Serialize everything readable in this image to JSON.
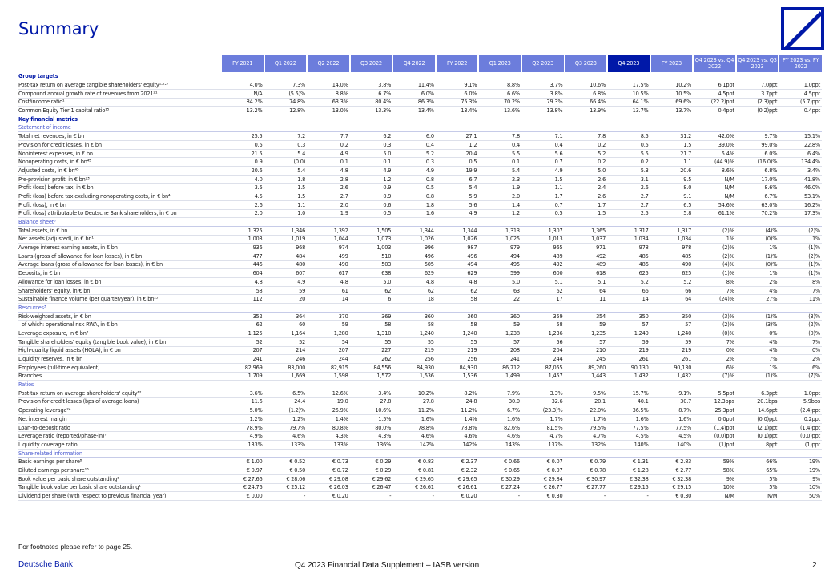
{
  "page": {
    "title": "Summary",
    "footnote": "For footnotes please refer to page 25.",
    "brand": "Deutsche Bank",
    "document_title": "Q4 2023 Financial Data Supplement – IASB version",
    "page_number": "2",
    "accent_color": "#0018a8"
  },
  "columns": [
    "FY 2021",
    "Q1 2022",
    "Q2 2022",
    "Q3 2022",
    "Q4 2022",
    "FY 2022",
    "Q1 2023",
    "Q2 2023",
    "Q3 2023",
    "Q4 2023",
    "FY 2023",
    "Q4 2023 vs. Q4 2022",
    "Q4 2023 vs. Q3 2023",
    "FY 2023 vs. FY 2022"
  ],
  "rows": [
    {
      "type": "section",
      "label": "Group targets"
    },
    {
      "label": "Post-tax return on average tangible shareholders' equity¹·²·³",
      "values": [
        "4.0%",
        "7.3%",
        "14.0%",
        "3.8%",
        "11.4%",
        "9.1%",
        "8.8%",
        "3.7%",
        "10.6%",
        "17.5%",
        "10.2%",
        "6.1ppt",
        "7.0ppt",
        "1.0ppt"
      ]
    },
    {
      "label": "Compound annual growth rate of revenues from 2021²¹",
      "values": [
        "N/A",
        "(5.5)%",
        "8.8%",
        "6.7%",
        "6.0%",
        "6.0%",
        "6.6%",
        "3.8%",
        "6.8%",
        "10.5%",
        "10.5%",
        "4.5ppt",
        "3.7ppt",
        "4.5ppt"
      ]
    },
    {
      "label": "Cost/income ratio¹",
      "values": [
        "84.2%",
        "74.8%",
        "63.3%",
        "80.4%",
        "86.3%",
        "75.3%",
        "70.2%",
        "79.3%",
        "66.4%",
        "64.1%",
        "69.6%",
        "(22.2)ppt",
        "(2.3)ppt",
        "(5.7)ppt"
      ]
    },
    {
      "label": "Common Equity Tier 1 capital ratio¹⁵",
      "values": [
        "13.2%",
        "12.8%",
        "13.0%",
        "13.3%",
        "13.4%",
        "13.4%",
        "13.6%",
        "13.8%",
        "13.9%",
        "13.7%",
        "13.7%",
        "0.4ppt",
        "(0.2)ppt",
        "0.4ppt"
      ]
    },
    {
      "type": "section",
      "label": "Key financial metrics"
    },
    {
      "type": "subsection",
      "label": "Statement of income"
    },
    {
      "label": "Total net revenues, in € bn",
      "values": [
        "25.5",
        "7.2",
        "7.7",
        "6.2",
        "6.0",
        "27.1",
        "7.8",
        "7.1",
        "7.8",
        "8.5",
        "31.2",
        "42.0%",
        "9.7%",
        "15.1%"
      ]
    },
    {
      "label": "Provision for credit losses, in € bn",
      "values": [
        "0.5",
        "0.3",
        "0.2",
        "0.3",
        "0.4",
        "1.2",
        "0.4",
        "0.4",
        "0.2",
        "0.5",
        "1.5",
        "39.0%",
        "99.0%",
        "22.8%"
      ]
    },
    {
      "label": "Noninterest expenses, in € bn",
      "values": [
        "21.5",
        "5.4",
        "4.9",
        "5.0",
        "5.2",
        "20.4",
        "5.5",
        "5.6",
        "5.2",
        "5.5",
        "21.7",
        "5.4%",
        "6.0%",
        "6.4%"
      ]
    },
    {
      "label": "Nonoperating costs, in € bn⁴⁵",
      "values": [
        "0.9",
        "(0.0)",
        "0.1",
        "0.1",
        "0.3",
        "0.5",
        "0.1",
        "0.7",
        "0.2",
        "0.2",
        "1.1",
        "(44.9)%",
        "(16.0)%",
        "134.4%"
      ]
    },
    {
      "label": "Adjusted costs, in € bn⁴⁵",
      "values": [
        "20.6",
        "5.4",
        "4.8",
        "4.9",
        "4.9",
        "19.9",
        "5.4",
        "4.9",
        "5.0",
        "5.3",
        "20.6",
        "8.6%",
        "6.8%",
        "3.4%"
      ]
    },
    {
      "label": "Pre-provision profit, in € bn²³",
      "values": [
        "4.0",
        "1.8",
        "2.8",
        "1.2",
        "0.8",
        "6.7",
        "2.3",
        "1.5",
        "2.6",
        "3.1",
        "9.5",
        "N/M",
        "17.0%",
        "41.8%"
      ]
    },
    {
      "label": "Profit (loss) before tax, in € bn",
      "values": [
        "3.5",
        "1.5",
        "2.6",
        "0.9",
        "0.5",
        "5.4",
        "1.9",
        "1.1",
        "2.4",
        "2.6",
        "8.0",
        "N/M",
        "8.6%",
        "46.0%"
      ]
    },
    {
      "label": "Profit (loss) before tax excluding nonoperating costs, in € bn⁴",
      "values": [
        "4.5",
        "1.5",
        "2.7",
        "0.9",
        "0.8",
        "5.9",
        "2.0",
        "1.7",
        "2.6",
        "2.7",
        "9.1",
        "N/M",
        "6.7%",
        "53.1%"
      ]
    },
    {
      "label": "Profit (loss), in € bn",
      "values": [
        "2.6",
        "1.1",
        "2.0",
        "0.6",
        "1.8",
        "5.6",
        "1.4",
        "0.7",
        "1.7",
        "2.7",
        "6.5",
        "54.6%",
        "63.0%",
        "16.2%"
      ]
    },
    {
      "label": "Profit (loss) attributable to Deutsche Bank shareholders, in € bn",
      "values": [
        "2.0",
        "1.0",
        "1.9",
        "0.5",
        "1.6",
        "4.9",
        "1.2",
        "0.5",
        "1.5",
        "2.5",
        "5.8",
        "61.1%",
        "70.2%",
        "17.3%"
      ]
    },
    {
      "type": "subsection",
      "label": "Balance sheet³"
    },
    {
      "label": "Total assets, in € bn",
      "values": [
        "1,325",
        "1,346",
        "1,392",
        "1,505",
        "1,344",
        "1,344",
        "1,313",
        "1,307",
        "1,365",
        "1,317",
        "1,317",
        "(2)%",
        "(4)%",
        "(2)%"
      ]
    },
    {
      "label": "Net assets (adjusted), in € bn¹",
      "values": [
        "1,003",
        "1,019",
        "1,044",
        "1,073",
        "1,026",
        "1,026",
        "1,025",
        "1,013",
        "1,037",
        "1,034",
        "1,034",
        "1%",
        "(0)%",
        "1%"
      ]
    },
    {
      "label": "Average interest earning assets, in € bn",
      "values": [
        "936",
        "968",
        "974",
        "1,003",
        "996",
        "987",
        "979",
        "965",
        "971",
        "978",
        "978",
        "(2)%",
        "1%",
        "(1)%"
      ]
    },
    {
      "label": "Loans (gross of allowance for loan losses), in € bn",
      "values": [
        "477",
        "484",
        "499",
        "510",
        "496",
        "496",
        "494",
        "489",
        "492",
        "485",
        "485",
        "(2)%",
        "(1)%",
        "(2)%"
      ]
    },
    {
      "label": "Average loans (gross of allowance for loan losses), in € bn",
      "values": [
        "446",
        "480",
        "490",
        "503",
        "505",
        "494",
        "495",
        "492",
        "489",
        "486",
        "490",
        "(4)%",
        "(0)%",
        "(1)%"
      ]
    },
    {
      "label": "Deposits, in € bn",
      "values": [
        "604",
        "607",
        "617",
        "638",
        "629",
        "629",
        "599",
        "600",
        "618",
        "625",
        "625",
        "(1)%",
        "1%",
        "(1)%"
      ]
    },
    {
      "label": "Allowance for loan losses, in € bn",
      "values": [
        "4.8",
        "4.9",
        "4.8",
        "5.0",
        "4.8",
        "4.8",
        "5.0",
        "5.1",
        "5.1",
        "5.2",
        "5.2",
        "8%",
        "2%",
        "8%"
      ]
    },
    {
      "label": "Shareholders' equity, in € bn",
      "values": [
        "58",
        "59",
        "61",
        "62",
        "62",
        "62",
        "63",
        "62",
        "64",
        "66",
        "66",
        "7%",
        "4%",
        "7%"
      ]
    },
    {
      "label": "Sustainable finance volume (per quarter/year), in € bn²³",
      "values": [
        "112",
        "20",
        "14",
        "6",
        "18",
        "58",
        "22",
        "17",
        "11",
        "14",
        "64",
        "(24)%",
        "27%",
        "11%"
      ]
    },
    {
      "type": "subsection",
      "label": "Resources³"
    },
    {
      "label": "Risk-weighted assets, in € bn",
      "values": [
        "352",
        "364",
        "370",
        "369",
        "360",
        "360",
        "360",
        "359",
        "354",
        "350",
        "350",
        "(3)%",
        "(1)%",
        "(3)%"
      ]
    },
    {
      "label": "of which: operational risk RWA, in € bn",
      "indent": true,
      "values": [
        "62",
        "60",
        "59",
        "58",
        "58",
        "58",
        "59",
        "58",
        "59",
        "57",
        "57",
        "(2)%",
        "(3)%",
        "(2)%"
      ]
    },
    {
      "label": "Leverage exposure, in € bn⁷",
      "values": [
        "1,125",
        "1,164",
        "1,280",
        "1,310",
        "1,240",
        "1,240",
        "1,238",
        "1,236",
        "1,235",
        "1,240",
        "1,240",
        "(0)%",
        "0%",
        "(0)%"
      ]
    },
    {
      "label": "Tangible shareholders' equity (tangible book value), in € bn",
      "values": [
        "52",
        "52",
        "54",
        "55",
        "55",
        "55",
        "57",
        "56",
        "57",
        "59",
        "59",
        "7%",
        "4%",
        "7%"
      ]
    },
    {
      "label": "High-quality liquid assets (HQLA), in € bn",
      "values": [
        "207",
        "214",
        "207",
        "227",
        "219",
        "219",
        "208",
        "204",
        "210",
        "219",
        "219",
        "0%",
        "4%",
        "0%"
      ]
    },
    {
      "label": "Liquidity reserves, in € bn",
      "values": [
        "241",
        "246",
        "244",
        "262",
        "256",
        "256",
        "241",
        "244",
        "245",
        "261",
        "261",
        "2%",
        "7%",
        "2%"
      ]
    },
    {
      "label": "Employees (full-time equivalent)",
      "values": [
        "82,969",
        "83,000",
        "82,915",
        "84,556",
        "84,930",
        "84,930",
        "86,712",
        "87,055",
        "89,260",
        "90,130",
        "90,130",
        "6%",
        "1%",
        "6%"
      ]
    },
    {
      "label": "Branches",
      "values": [
        "1,709",
        "1,669",
        "1,598",
        "1,572",
        "1,536",
        "1,536",
        "1,499",
        "1,457",
        "1,443",
        "1,432",
        "1,432",
        "(7)%",
        "(1)%",
        "(7)%"
      ]
    },
    {
      "type": "subsection",
      "label": "Ratios"
    },
    {
      "label": "Post-tax return on average shareholders' equity¹²",
      "values": [
        "3.6%",
        "6.5%",
        "12.6%",
        "3.4%",
        "10.2%",
        "8.2%",
        "7.9%",
        "3.3%",
        "9.5%",
        "15.7%",
        "9.1%",
        "5.5ppt",
        "6.3ppt",
        "1.0ppt"
      ]
    },
    {
      "label": "Provision for credit losses (bps of average loans)",
      "values": [
        "11.6",
        "24.4",
        "19.0",
        "27.8",
        "27.8",
        "24.8",
        "30.0",
        "32.6",
        "20.1",
        "40.1",
        "30.7",
        "12.3bps",
        "20.1bps",
        "5.9bps"
      ]
    },
    {
      "label": "Operating leverage²⁴",
      "values": [
        "5.0%",
        "(1.2)%",
        "25.9%",
        "10.6%",
        "11.2%",
        "11.2%",
        "6.7%",
        "(23.3)%",
        "22.0%",
        "36.5%",
        "8.7%",
        "25.3ppt",
        "14.6ppt",
        "(2.4)ppt"
      ]
    },
    {
      "label": "Net interest margin",
      "values": [
        "1.2%",
        "1.2%",
        "1.4%",
        "1.5%",
        "1.6%",
        "1.4%",
        "1.6%",
        "1.7%",
        "1.7%",
        "1.6%",
        "1.6%",
        "0.0ppt",
        "(0.0)ppt",
        "0.2ppt"
      ]
    },
    {
      "label": "Loan-to-deposit ratio",
      "values": [
        "78.9%",
        "79.7%",
        "80.8%",
        "80.0%",
        "78.8%",
        "78.8%",
        "82.6%",
        "81.5%",
        "79.5%",
        "77.5%",
        "77.5%",
        "(1.4)ppt",
        "(2.1)ppt",
        "(1.4)ppt"
      ]
    },
    {
      "label": "Leverage ratio (reported/phase-in)⁷",
      "values": [
        "4.9%",
        "4.6%",
        "4.3%",
        "4.3%",
        "4.6%",
        "4.6%",
        "4.6%",
        "4.7%",
        "4.7%",
        "4.5%",
        "4.5%",
        "(0.0)ppt",
        "(0.1)ppt",
        "(0.0)ppt"
      ]
    },
    {
      "label": "Liquidity coverage ratio",
      "values": [
        "133%",
        "133%",
        "133%",
        "136%",
        "142%",
        "142%",
        "143%",
        "137%",
        "132%",
        "140%",
        "140%",
        "(1)ppt",
        "8ppt",
        "(1)ppt"
      ]
    },
    {
      "type": "subsection",
      "label": "Share-related information"
    },
    {
      "label": "Basic earnings per share⁸",
      "values": [
        "€ 1.00",
        "€ 0.52",
        "€ 0.73",
        "€ 0.29",
        "€ 0.83",
        "€ 2.37",
        "€ 0.66",
        "€ 0.07",
        "€ 0.79",
        "€ 1.31",
        "€ 2.83",
        "59%",
        "66%",
        "19%"
      ]
    },
    {
      "label": "Diluted earnings per share¹⁸",
      "values": [
        "€ 0.97",
        "€ 0.50",
        "€ 0.72",
        "€ 0.29",
        "€ 0.81",
        "€ 2.32",
        "€ 0.65",
        "€ 0.07",
        "€ 0.78",
        "€ 1.28",
        "€ 2.77",
        "58%",
        "65%",
        "19%"
      ]
    },
    {
      "label": "Book value per basic share outstanding¹",
      "values": [
        "€ 27.66",
        "€ 28.06",
        "€ 29.08",
        "€ 29.62",
        "€ 29.65",
        "€ 29.65",
        "€ 30.29",
        "€ 29.84",
        "€ 30.97",
        "€ 32.38",
        "€ 32.38",
        "9%",
        "5%",
        "9%"
      ]
    },
    {
      "label": "Tangible book value per basic share outstanding¹",
      "values": [
        "€ 24.76",
        "€ 25.12",
        "€ 26.03",
        "€ 26.47",
        "€ 26.61",
        "€ 26.61",
        "€ 27.24",
        "€ 26.77",
        "€ 27.77",
        "€ 29.15",
        "€ 29.15",
        "10%",
        "5%",
        "10%"
      ]
    },
    {
      "label": "Dividend per share (with respect to previous financial year)",
      "values": [
        "€ 0.00",
        "-",
        "€ 0.20",
        "-",
        "-",
        "€ 0.20",
        "-",
        "€ 0.30",
        "-",
        "-",
        "€ 0.30",
        "N/M",
        "N/M",
        "50%"
      ]
    }
  ]
}
